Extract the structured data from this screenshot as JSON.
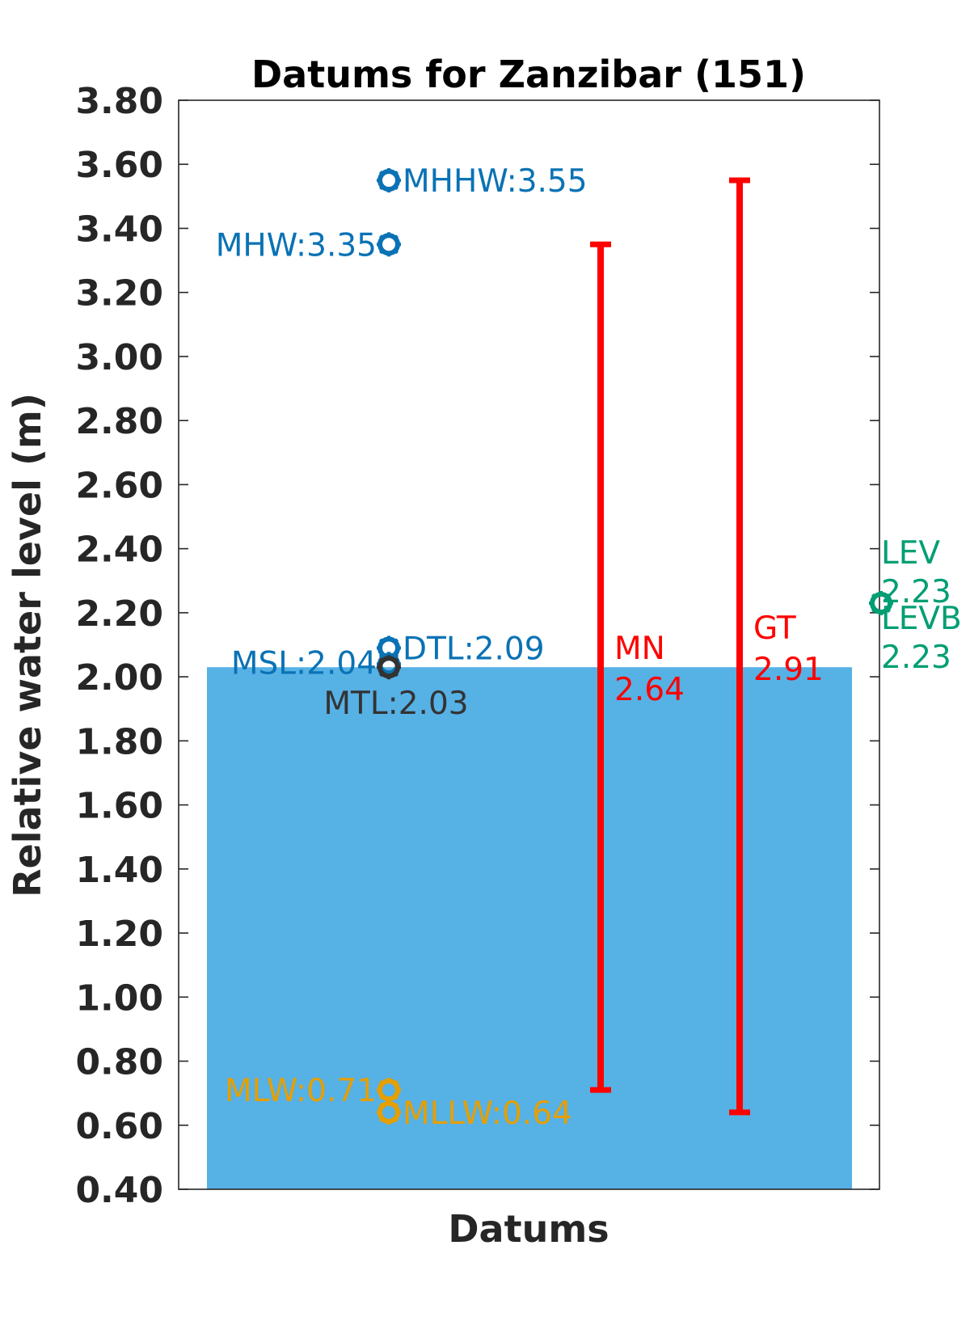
{
  "chart_data": {
    "type": "scatter",
    "title": "Datums for Zanzibar (151)",
    "xlabel": "Datums",
    "ylabel": "Relative water level (m)",
    "ylim": [
      0.4,
      3.8
    ],
    "yticks": [
      "0.40",
      "0.60",
      "0.80",
      "1.00",
      "1.20",
      "1.40",
      "1.60",
      "1.80",
      "2.00",
      "2.20",
      "2.40",
      "2.60",
      "2.80",
      "3.00",
      "3.20",
      "3.40",
      "3.60",
      "3.80"
    ],
    "grid": false,
    "bar": {
      "value": 2.03,
      "color": "#56B1E5"
    },
    "points": [
      {
        "name": "MHHW",
        "value": 3.55,
        "label": "MHHW:3.55",
        "color": "#0A72B5",
        "side": "right"
      },
      {
        "name": "MHW",
        "value": 3.35,
        "label": "MHW:3.35",
        "color": "#0A72B5",
        "side": "left"
      },
      {
        "name": "DTL",
        "value": 2.09,
        "label": "DTL:2.09",
        "color": "#0A72B5",
        "side": "right"
      },
      {
        "name": "MSL",
        "value": 2.04,
        "label": "MSL:2.04",
        "color": "#0A72B5",
        "side": "left"
      },
      {
        "name": "MTL",
        "value": 2.03,
        "label": "MTL:2.03",
        "color": "#333333",
        "side": "below"
      },
      {
        "name": "MLW",
        "value": 0.71,
        "label": "MLW:0.71",
        "color": "#E69F00",
        "side": "left"
      },
      {
        "name": "MLLW",
        "value": 0.64,
        "label": "MLLW:0.64",
        "color": "#E69F00",
        "side": "right"
      }
    ],
    "ranges": [
      {
        "name": "MN",
        "low": 0.71,
        "high": 3.35,
        "label_lines": [
          "MN",
          "2.64"
        ],
        "color": "#FF0000"
      },
      {
        "name": "GT",
        "low": 0.64,
        "high": 3.55,
        "label_lines": [
          "GT",
          "2.91"
        ],
        "color": "#FF0000"
      }
    ],
    "side_points": [
      {
        "name": "LEV",
        "value": 2.23,
        "label_lines": [
          "LEV",
          "2.23"
        ],
        "color": "#009E73",
        "pos": "above"
      },
      {
        "name": "LEVB",
        "value": 2.23,
        "label_lines": [
          "LEVB",
          "2.23"
        ],
        "color": "#009E73",
        "pos": "below"
      }
    ]
  }
}
